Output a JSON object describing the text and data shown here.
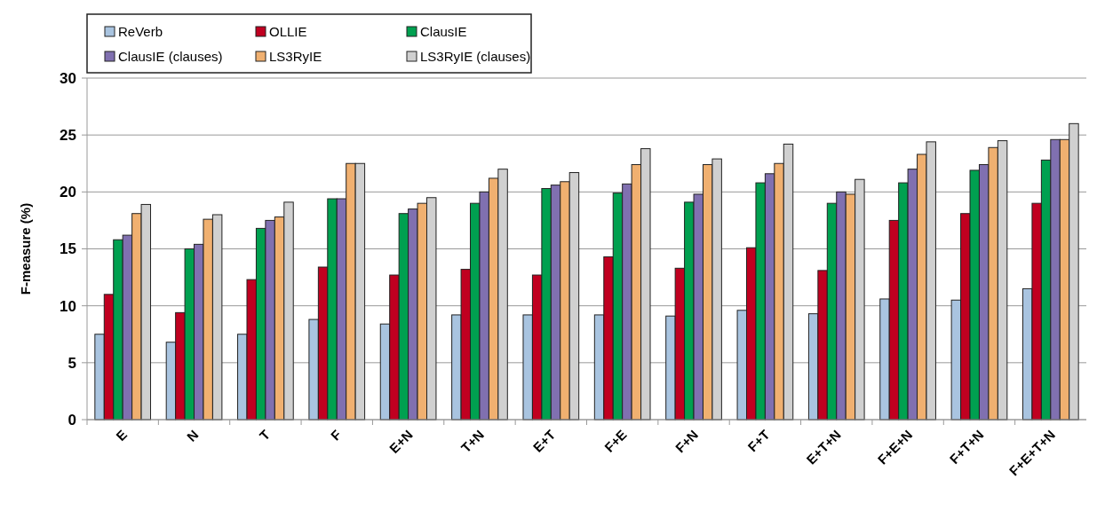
{
  "chart_data": {
    "type": "bar",
    "ylabel": "F-measure (%)",
    "categories": [
      "E",
      "N",
      "T",
      "F",
      "E+N",
      "T+N",
      "E+T",
      "F+E",
      "F+N",
      "F+T",
      "E+T+N",
      "F+E+N",
      "F+T+N",
      "F+E+T+N"
    ],
    "series": [
      {
        "name": "ReVerb",
        "color": "#a9c4e0",
        "values": [
          7.5,
          6.8,
          7.5,
          8.8,
          8.4,
          9.2,
          9.2,
          9.2,
          9.1,
          9.6,
          9.3,
          10.6,
          10.5,
          11.5
        ]
      },
      {
        "name": "OLLIE",
        "color": "#c00020",
        "values": [
          11,
          9.4,
          12.3,
          13.4,
          12.7,
          13.2,
          12.7,
          14.3,
          13.3,
          15.1,
          13.1,
          17.5,
          18.1,
          19
        ]
      },
      {
        "name": "ClausIE",
        "color": "#00a050",
        "values": [
          15.8,
          15,
          16.8,
          19.4,
          18.1,
          19,
          20.3,
          19.9,
          19.1,
          20.8,
          19,
          20.8,
          21.9,
          22.8
        ]
      },
      {
        "name": "ClausIE (clauses)",
        "color": "#8070b0",
        "values": [
          16.2,
          15.4,
          17.5,
          19.4,
          18.5,
          20,
          20.6,
          20.7,
          19.8,
          21.6,
          20,
          22,
          22.4,
          24.6
        ]
      },
      {
        "name": "LS3RyIE",
        "color": "#f0b070",
        "values": [
          18.1,
          17.6,
          17.8,
          22.5,
          19,
          21.2,
          20.9,
          22.4,
          22.4,
          22.5,
          19.8,
          23.3,
          23.9,
          24.6
        ]
      },
      {
        "name": "LS3RyIE (clauses)",
        "color": "#d0d0d0",
        "values": [
          18.9,
          18,
          19.1,
          22.5,
          19.5,
          22,
          21.7,
          23.8,
          22.9,
          24.2,
          21.1,
          24.4,
          24.5,
          26
        ]
      }
    ],
    "ylim": [
      0,
      30
    ],
    "yticks": [
      0,
      5,
      10,
      15,
      20,
      25,
      30
    ],
    "grid": "y",
    "legend": "top left"
  }
}
